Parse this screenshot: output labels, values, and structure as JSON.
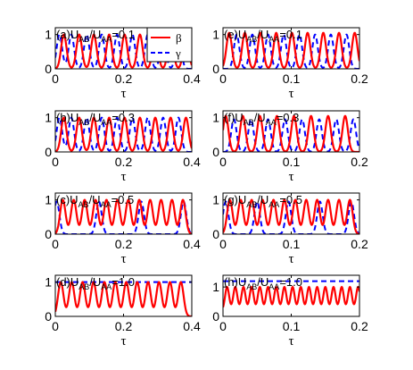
{
  "chart_data": [
    {
      "type": "line",
      "panel": "a",
      "title_parts": [
        "(a)U",
        "AB",
        "/U",
        "AA",
        "=0.1"
      ],
      "xlabel": "τ",
      "xlim": [
        0,
        0.4
      ],
      "ylim": [
        0,
        1.2
      ],
      "xticks": [
        "0",
        "0.2",
        "0.4"
      ],
      "yticks": [
        "0",
        "1"
      ],
      "legend": {
        "position": "top-right",
        "entries": [
          "β",
          "γ"
        ]
      },
      "series": [
        {
          "name": "β",
          "color": "#ff0000",
          "style": "solid",
          "peak_times": [
            0.025,
            0.07,
            0.113,
            0.158,
            0.203,
            0.248,
            0.293,
            0.338,
            0.383
          ],
          "peak_height": 1.0
        },
        {
          "name": "γ",
          "color": "#0000ff",
          "style": "dashed",
          "peak_times": [
            0.012,
            0.047,
            0.092,
            0.136,
            0.181,
            0.226,
            0.271,
            0.316,
            0.361
          ],
          "peak_height": 1.0
        }
      ]
    },
    {
      "type": "line",
      "panel": "e",
      "title_parts": [
        "(e)U",
        "AB",
        "/U",
        "AA",
        "=0.1"
      ],
      "xlabel": "τ",
      "xlim": [
        0,
        0.2
      ],
      "ylim": [
        0,
        1.2
      ],
      "xticks": [
        "0",
        "0.1",
        "0.2"
      ],
      "yticks": [
        "0",
        "1"
      ],
      "series": [
        {
          "name": "β",
          "color": "#ff0000",
          "style": "solid",
          "peak_times": [
            0.009,
            0.032,
            0.055,
            0.078,
            0.101,
            0.124,
            0.147,
            0.17,
            0.193
          ],
          "peak_height": 1.05
        },
        {
          "name": "γ",
          "color": "#0000ff",
          "style": "dashed",
          "peak_times": [
            0.02,
            0.043,
            0.066,
            0.089,
            0.112,
            0.135,
            0.158,
            0.181
          ],
          "peak_height": 1.0
        }
      ]
    },
    {
      "type": "line",
      "panel": "b",
      "title_parts": [
        "(b)U",
        "AB",
        "/U",
        "AA",
        "=0.3"
      ],
      "xlabel": "τ",
      "xlim": [
        0,
        0.4
      ],
      "ylim": [
        0,
        1.2
      ],
      "xticks": [
        "0",
        "0.2",
        "0.4"
      ],
      "yticks": [
        "0",
        "1"
      ],
      "series": [
        {
          "name": "β",
          "color": "#ff0000",
          "style": "solid",
          "peak_times": [
            0.025,
            0.07,
            0.113,
            0.158,
            0.203,
            0.248,
            0.293,
            0.338,
            0.383
          ],
          "peak_height": 1.0
        },
        {
          "name": "γ",
          "color": "#0000ff",
          "style": "dashed",
          "peak_times": [
            0.012,
            0.047,
            0.092,
            0.136,
            0.181,
            0.226,
            0.271,
            0.316,
            0.361
          ],
          "peak_height": 1.0
        }
      ]
    },
    {
      "type": "line",
      "panel": "f",
      "title_parts": [
        "(f)U",
        "AB",
        "/U",
        "AA",
        "=0.3"
      ],
      "xlabel": "τ",
      "xlim": [
        0,
        0.2
      ],
      "ylim": [
        0,
        1.2
      ],
      "xticks": [
        "0",
        "0.1",
        "0.2"
      ],
      "yticks": [
        "0",
        "1"
      ],
      "series": [
        {
          "name": "β",
          "color": "#ff0000",
          "style": "solid",
          "peak_times": [
            0.004,
            0.029,
            0.054,
            0.079,
            0.104,
            0.129,
            0.154,
            0.179
          ],
          "peak_height": 1.05
        },
        {
          "name": "γ",
          "color": "#0000ff",
          "style": "dashed",
          "peak_times": [
            0.016,
            0.041,
            0.066,
            0.091,
            0.116,
            0.141,
            0.166,
            0.191
          ],
          "peak_height": 0.95
        }
      ]
    },
    {
      "type": "line",
      "panel": "c",
      "title_parts": [
        "(c)U",
        "AB",
        "/U",
        "AA",
        "=0.5"
      ],
      "xlabel": "τ",
      "xlim": [
        0,
        0.4
      ],
      "ylim": [
        0,
        1.2
      ],
      "xticks": [
        "0",
        "0.2",
        "0.4"
      ],
      "yticks": [
        "0",
        "1"
      ],
      "series": [
        {
          "name": "β",
          "color": "#ff0000",
          "style": "solid",
          "peak_times": [
            0.022,
            0.054,
            0.086,
            0.118,
            0.15,
            0.182,
            0.214,
            0.246,
            0.278,
            0.31,
            0.342,
            0.374
          ],
          "peak_height": 1.0
        },
        {
          "name": "γ",
          "color": "#0000ff",
          "style": "dashed",
          "peak_times": [
            0.004,
            0.128,
            0.252,
            0.376
          ],
          "peak_height": 0.95
        }
      ]
    },
    {
      "type": "line",
      "panel": "g",
      "title_parts": [
        "(g)U",
        "AB",
        "/U",
        "AA",
        "=0.5"
      ],
      "xlabel": "τ",
      "xlim": [
        0,
        0.2
      ],
      "ylim": [
        0,
        1.2
      ],
      "xticks": [
        "0",
        "0.1",
        "0.2"
      ],
      "yticks": [
        "0",
        "1"
      ],
      "series": [
        {
          "name": "β",
          "color": "#ff0000",
          "style": "solid",
          "peak_times": [
            0.01,
            0.026,
            0.042,
            0.058,
            0.074,
            0.09,
            0.106,
            0.122,
            0.138,
            0.154,
            0.17,
            0.186
          ],
          "peak_height": 1.0
        },
        {
          "name": "γ",
          "color": "#0000ff",
          "style": "dashed",
          "peak_times": [
            0.004,
            0.05,
            0.096,
            0.142,
            0.188
          ],
          "peak_height": 0.95
        }
      ]
    },
    {
      "type": "line",
      "panel": "d",
      "title_parts": [
        "(d)U",
        "AB",
        "/U",
        "AA",
        "=1.0"
      ],
      "xlabel": "τ",
      "xlim": [
        0,
        0.4
      ],
      "ylim": [
        0,
        1.2
      ],
      "xticks": [
        "0",
        "0.2",
        "0.4"
      ],
      "yticks": [
        "0",
        "1"
      ],
      "series": [
        {
          "name": "β",
          "color": "#ff0000",
          "style": "solid",
          "peak_times": [
            0.016,
            0.048,
            0.08,
            0.112,
            0.144,
            0.176,
            0.208,
            0.24,
            0.272,
            0.304,
            0.336,
            0.368
          ],
          "peak_height": 1.0
        },
        {
          "name": "γ",
          "color": "#0000ff",
          "style": "dashed",
          "constant": 1.0
        }
      ]
    },
    {
      "type": "line",
      "panel": "h",
      "title_parts": [
        "(h)U",
        "AB",
        "/U",
        "AA",
        "=1.0"
      ],
      "xlabel": "τ",
      "xlim": [
        0,
        0.2
      ],
      "ylim": [
        0,
        1.4
      ],
      "xticks": [
        "0",
        "0.1",
        "0.2"
      ],
      "yticks": [
        "0",
        "1"
      ],
      "series": [
        {
          "name": "β",
          "color": "#ff0000",
          "style": "solid",
          "peak_times": [
            0.006,
            0.018,
            0.03,
            0.042,
            0.054,
            0.066,
            0.078,
            0.09,
            0.102,
            0.114,
            0.126,
            0.138,
            0.15,
            0.162,
            0.174,
            0.186,
            0.198
          ],
          "peak_height": 1.0,
          "baseline": 0.2
        },
        {
          "name": "γ",
          "color": "#0000ff",
          "style": "dashed",
          "constant": 1.2
        }
      ]
    }
  ]
}
